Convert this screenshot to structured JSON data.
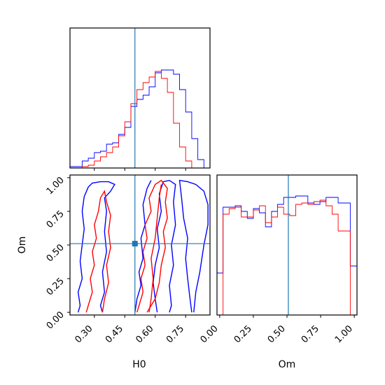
{
  "chart_data": {
    "type": "corner",
    "parameters": [
      "H0",
      "Om"
    ],
    "truths": {
      "H0": 0.5,
      "Om": 0.51
    },
    "truth_color": "#1f77b4",
    "series": [
      {
        "color": "#0000ff"
      },
      {
        "color": "#ff0000"
      }
    ],
    "panels": [
      {
        "type": "histogram",
        "param": "H0",
        "xlim": [
          0.18,
          0.87
        ],
        "bins": [
          0.18,
          0.21,
          0.24,
          0.27,
          0.3,
          0.33,
          0.36,
          0.39,
          0.42,
          0.45,
          0.48,
          0.51,
          0.54,
          0.57,
          0.6,
          0.63,
          0.66,
          0.69,
          0.72,
          0.75,
          0.78,
          0.81,
          0.84,
          0.87
        ],
        "counts_blue": [
          0.01,
          0.01,
          0.05,
          0.07,
          0.11,
          0.12,
          0.17,
          0.18,
          0.24,
          0.29,
          0.44,
          0.49,
          0.52,
          0.58,
          0.68,
          0.7,
          0.7,
          0.67,
          0.56,
          0.4,
          0.21,
          0.06,
          0.0
        ],
        "counts_red": [
          0.0,
          0.0,
          0.01,
          0.02,
          0.05,
          0.08,
          0.11,
          0.15,
          0.23,
          0.33,
          0.46,
          0.56,
          0.61,
          0.65,
          0.69,
          0.64,
          0.54,
          0.32,
          0.15,
          0.05,
          0.0,
          0.0,
          0.0
        ],
        "ymax": 1.0
      },
      {
        "type": "histogram",
        "param": "Om",
        "xlim": [
          -0.02,
          1.02
        ],
        "bins": [
          -0.02,
          0.025,
          0.07,
          0.115,
          0.16,
          0.205,
          0.25,
          0.295,
          0.34,
          0.385,
          0.43,
          0.475,
          0.52,
          0.565,
          0.61,
          0.655,
          0.7,
          0.745,
          0.79,
          0.835,
          0.88,
          0.925,
          0.97,
          1.02
        ],
        "counts_blue": [
          0.3,
          0.77,
          0.77,
          0.78,
          0.74,
          0.69,
          0.76,
          0.73,
          0.63,
          0.74,
          0.79,
          0.84,
          0.84,
          0.85,
          0.85,
          0.8,
          0.79,
          0.81,
          0.84,
          0.84,
          0.8,
          0.8,
          0.35
        ],
        "counts_red": [
          0.0,
          0.72,
          0.76,
          0.77,
          0.7,
          0.7,
          0.75,
          0.78,
          0.66,
          0.7,
          0.77,
          0.72,
          0.71,
          0.79,
          0.8,
          0.79,
          0.81,
          0.82,
          0.78,
          0.72,
          0.6,
          0.6,
          0.0
        ],
        "ymax": 1.0
      },
      {
        "type": "contour",
        "x_param": "H0",
        "y_param": "Om",
        "xlim": [
          0.18,
          0.87
        ],
        "ylim": [
          -0.02,
          1.02
        ],
        "contours_blue": [
          [
            [
              0.22,
              0.0
            ],
            [
              0.23,
              0.05
            ],
            [
              0.22,
              0.15
            ],
            [
              0.24,
              0.25
            ],
            [
              0.23,
              0.38
            ],
            [
              0.24,
              0.5
            ],
            [
              0.25,
              0.62
            ],
            [
              0.24,
              0.75
            ],
            [
              0.25,
              0.86
            ],
            [
              0.27,
              0.93
            ],
            [
              0.29,
              0.96
            ],
            [
              0.33,
              0.97
            ],
            [
              0.37,
              0.97
            ],
            [
              0.4,
              0.95
            ],
            [
              0.38,
              0.9
            ],
            [
              0.35,
              0.85
            ],
            [
              0.36,
              0.75
            ],
            [
              0.35,
              0.6
            ],
            [
              0.36,
              0.45
            ],
            [
              0.34,
              0.3
            ],
            [
              0.35,
              0.15
            ],
            [
              0.33,
              0.05
            ],
            [
              0.34,
              0.0
            ]
          ],
          [
            [
              0.61,
              0.0
            ],
            [
              0.6,
              0.1
            ],
            [
              0.59,
              0.22
            ],
            [
              0.6,
              0.35
            ],
            [
              0.62,
              0.48
            ],
            [
              0.61,
              0.62
            ],
            [
              0.63,
              0.75
            ],
            [
              0.62,
              0.88
            ],
            [
              0.64,
              0.97
            ],
            [
              0.67,
              0.98
            ],
            [
              0.7,
              0.95
            ],
            [
              0.69,
              0.82
            ],
            [
              0.7,
              0.65
            ],
            [
              0.68,
              0.5
            ],
            [
              0.69,
              0.35
            ],
            [
              0.67,
              0.2
            ],
            [
              0.68,
              0.05
            ],
            [
              0.67,
              0.0
            ]
          ],
          [
            [
              0.5,
              0.0
            ],
            [
              0.51,
              0.1
            ],
            [
              0.53,
              0.2
            ],
            [
              0.52,
              0.3
            ],
            [
              0.54,
              0.4
            ],
            [
              0.53,
              0.55
            ],
            [
              0.55,
              0.65
            ],
            [
              0.54,
              0.8
            ],
            [
              0.56,
              0.92
            ],
            [
              0.58,
              0.98
            ]
          ],
          [
            [
              0.78,
              0.0
            ],
            [
              0.77,
              0.12
            ],
            [
              0.76,
              0.25
            ],
            [
              0.75,
              0.4
            ],
            [
              0.76,
              0.55
            ],
            [
              0.74,
              0.7
            ],
            [
              0.73,
              0.85
            ],
            [
              0.72,
              0.98
            ],
            [
              0.76,
              0.97
            ],
            [
              0.8,
              0.95
            ],
            [
              0.84,
              0.9
            ],
            [
              0.86,
              0.8
            ],
            [
              0.86,
              0.65
            ],
            [
              0.84,
              0.5
            ],
            [
              0.82,
              0.3
            ],
            [
              0.8,
              0.15
            ],
            [
              0.79,
              0.0
            ]
          ]
        ],
        "contours_red": [
          [
            [
              0.26,
              0.0
            ],
            [
              0.27,
              0.05
            ],
            [
              0.29,
              0.15
            ],
            [
              0.28,
              0.25
            ],
            [
              0.3,
              0.35
            ],
            [
              0.29,
              0.45
            ],
            [
              0.31,
              0.55
            ],
            [
              0.3,
              0.65
            ],
            [
              0.32,
              0.75
            ],
            [
              0.33,
              0.85
            ],
            [
              0.35,
              0.9
            ],
            [
              0.36,
              0.82
            ],
            [
              0.38,
              0.72
            ],
            [
              0.37,
              0.6
            ],
            [
              0.38,
              0.48
            ],
            [
              0.36,
              0.35
            ],
            [
              0.37,
              0.22
            ],
            [
              0.35,
              0.1
            ],
            [
              0.34,
              0.0
            ]
          ],
          [
            [
              0.51,
              0.0
            ],
            [
              0.52,
              0.05
            ],
            [
              0.54,
              0.15
            ],
            [
              0.53,
              0.25
            ],
            [
              0.55,
              0.35
            ],
            [
              0.54,
              0.45
            ],
            [
              0.56,
              0.55
            ],
            [
              0.55,
              0.65
            ],
            [
              0.58,
              0.75
            ],
            [
              0.57,
              0.85
            ],
            [
              0.6,
              0.95
            ],
            [
              0.63,
              0.98
            ],
            [
              0.66,
              0.92
            ],
            [
              0.65,
              0.82
            ],
            [
              0.66,
              0.7
            ],
            [
              0.64,
              0.6
            ],
            [
              0.65,
              0.48
            ],
            [
              0.63,
              0.35
            ],
            [
              0.62,
              0.22
            ],
            [
              0.6,
              0.1
            ],
            [
              0.58,
              0.05
            ],
            [
              0.56,
              0.0
            ]
          ],
          [
            [
              0.57,
              0.0
            ],
            [
              0.58,
              0.1
            ],
            [
              0.59,
              0.25
            ],
            [
              0.58,
              0.4
            ],
            [
              0.6,
              0.55
            ],
            [
              0.61,
              0.7
            ],
            [
              0.62,
              0.85
            ],
            [
              0.63,
              0.95
            ]
          ]
        ],
        "markers": [
          {
            "x": 0.5,
            "y": 0.51
          }
        ]
      }
    ],
    "xlabels": {
      "bottom_left": "H0",
      "bottom_right": "Om"
    },
    "ylabels": {
      "bottom_left": "Om"
    },
    "ticks": {
      "H0": [
        "0.30",
        "0.45",
        "0.60",
        "0.75"
      ],
      "H0_values": [
        0.3,
        0.45,
        0.6,
        0.75
      ],
      "Om": [
        "0.00",
        "0.25",
        "0.50",
        "0.75",
        "1.00"
      ],
      "Om_values": [
        0.0,
        0.25,
        0.5,
        0.75,
        1.0
      ]
    }
  }
}
